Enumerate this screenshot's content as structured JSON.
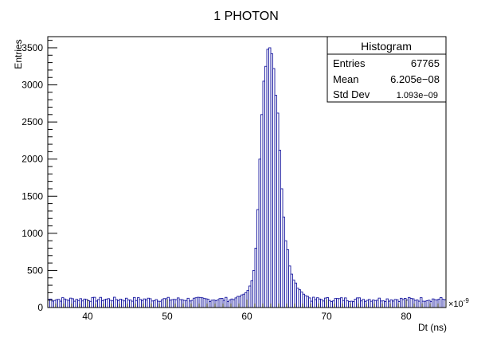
{
  "chart_data": {
    "type": "bar",
    "title": "1 PHOTON",
    "xlabel": "Dt (ns)",
    "ylabel": "Entries",
    "x_exponent_label": "×10",
    "x_exponent_power": "-9",
    "xlim": [
      35,
      85
    ],
    "ylim": [
      0,
      3650
    ],
    "x_ticks": [
      40,
      50,
      60,
      70,
      80
    ],
    "y_ticks": [
      0,
      500,
      1000,
      1500,
      2000,
      2500,
      3000,
      3500
    ],
    "grid": false,
    "bin_width": 0.25,
    "baseline_level": 110,
    "peak_bins": {
      "x": [
        58.5,
        58.75,
        59.0,
        59.25,
        59.5,
        59.75,
        60.0,
        60.25,
        60.5,
        60.75,
        61.0,
        61.25,
        61.5,
        61.75,
        62.0,
        62.25,
        62.5,
        62.75,
        63.0,
        63.25,
        63.5,
        63.75,
        64.0,
        64.25,
        64.5,
        64.75,
        65.0,
        65.25,
        65.5,
        65.75,
        66.0,
        66.25,
        66.5,
        66.75,
        67.0,
        67.25,
        67.5,
        67.75
      ],
      "values": [
        130,
        150,
        150,
        170,
        180,
        200,
        230,
        290,
        360,
        500,
        800,
        1320,
        2000,
        2600,
        3050,
        3250,
        3480,
        3500,
        3420,
        3220,
        2860,
        2620,
        2120,
        1600,
        1220,
        900,
        780,
        560,
        450,
        370,
        330,
        260,
        240,
        210,
        180,
        160,
        150,
        130
      ]
    },
    "stats_box": {
      "title": "Histogram",
      "rows": [
        {
          "label": "Entries",
          "value": "67765"
        },
        {
          "label": "Mean",
          "value": "6.205e−08"
        },
        {
          "label": "Std Dev",
          "value": "1.093e−09"
        }
      ]
    },
    "colors": {
      "line": "#1a1aa0",
      "frame": "#000000",
      "background": "#ffffff"
    }
  }
}
